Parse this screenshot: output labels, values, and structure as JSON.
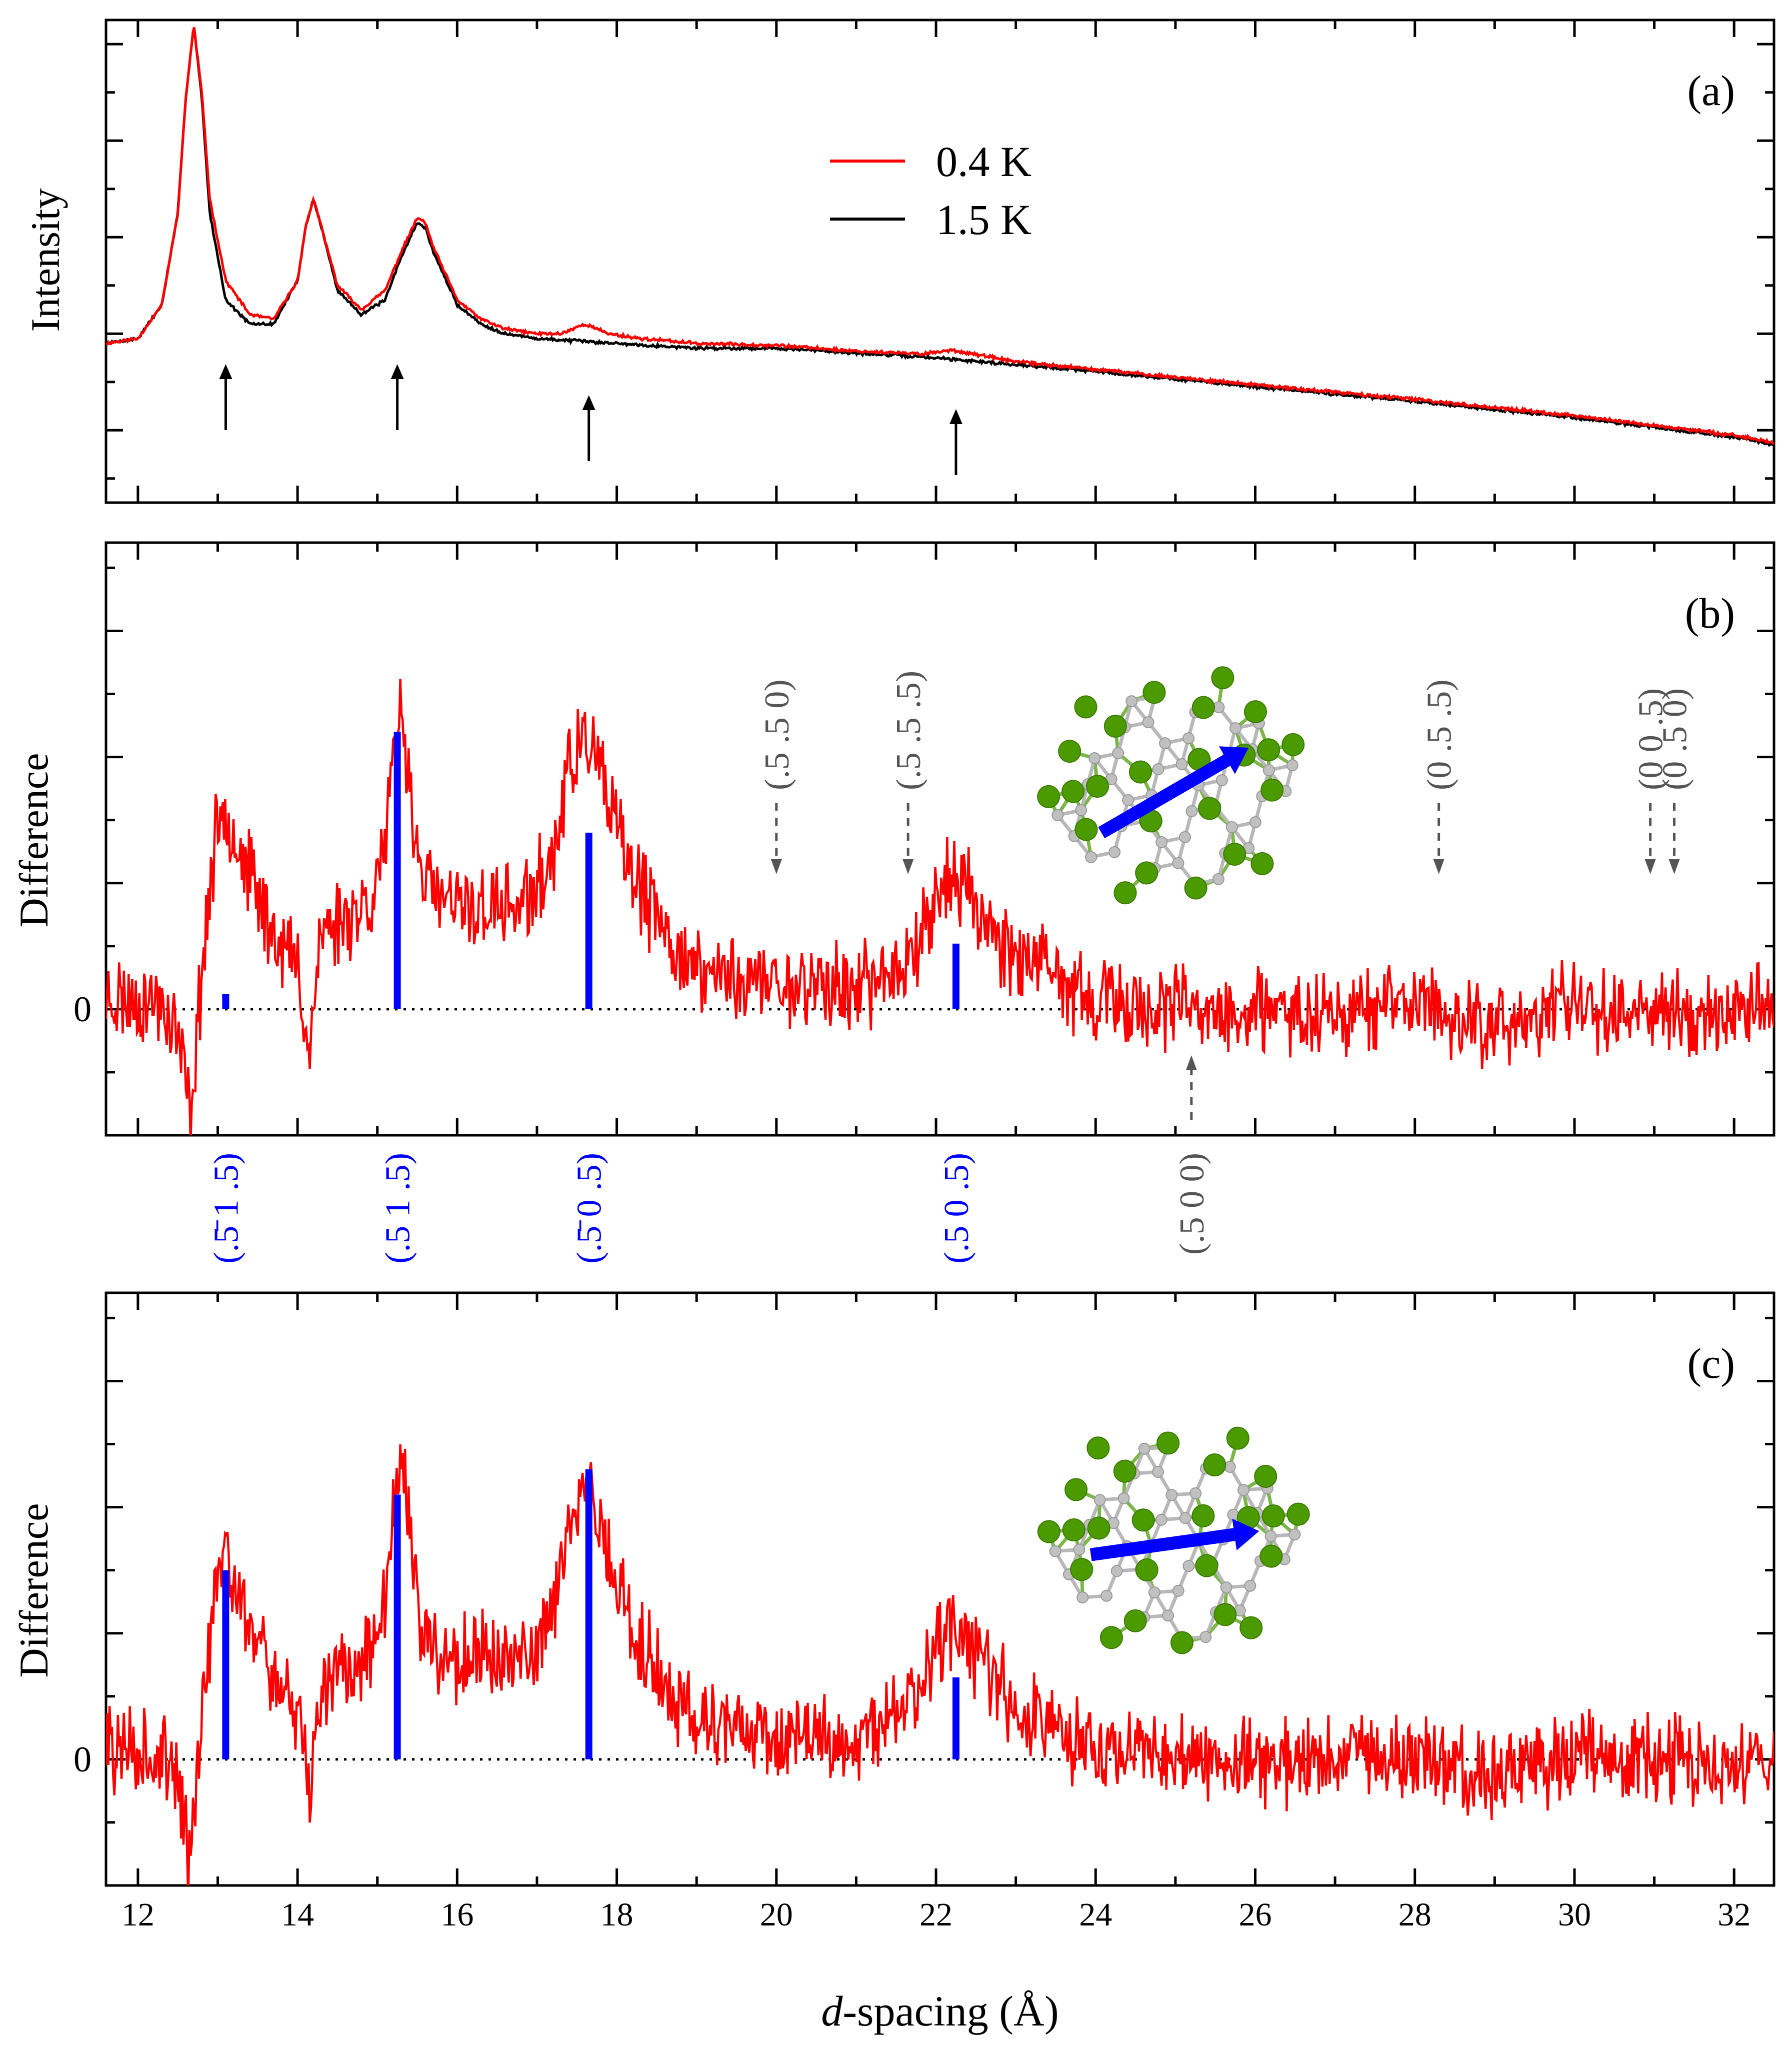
{
  "figure": {
    "xlabel_italic": "d",
    "xlabel_rest": "-spacing (Å)",
    "x_ticks": [
      "12",
      "14",
      "16",
      "18",
      "20",
      "22",
      "24",
      "26",
      "28",
      "30",
      "32"
    ],
    "x_tick_values": [
      12,
      14,
      16,
      18,
      20,
      22,
      24,
      26,
      28,
      30,
      32
    ],
    "zero_label": "0"
  },
  "colors": {
    "diff_red": "#ff0000",
    "black": "#000000",
    "blue_bar": "#0000ff",
    "gray_label": "#555555",
    "atom_green": "#4a9a00",
    "atom_gray": "#c0c0c0"
  },
  "chart_data": [
    {
      "panel": "(a)",
      "type": "line",
      "ylabel": "Intensity",
      "xlim": [
        11.6,
        32.5
      ],
      "ylim": [
        0,
        5.0
      ],
      "legend": [
        "0.4 K",
        "1.5 K"
      ],
      "legend_placement": "top-center",
      "series": [
        {
          "name": "1.5 K",
          "color": "#000000",
          "x": [
            11.6,
            12.0,
            12.3,
            12.5,
            12.6,
            12.7,
            12.8,
            12.9,
            13.1,
            13.4,
            13.7,
            14.0,
            14.1,
            14.2,
            14.3,
            14.5,
            14.8,
            15.1,
            15.3,
            15.5,
            15.6,
            15.7,
            16.0,
            16.3,
            16.6,
            17.0,
            18.0,
            19.0,
            20.0,
            21.0,
            22.0,
            23.0,
            24.0,
            26.0,
            28.0,
            30.0,
            32.0,
            32.5
          ],
          "y": [
            1.65,
            1.7,
            2.05,
            3.0,
            4.2,
            4.95,
            4.2,
            3.0,
            2.1,
            1.85,
            1.85,
            2.3,
            2.85,
            3.15,
            2.85,
            2.2,
            1.95,
            2.1,
            2.55,
            2.9,
            2.85,
            2.6,
            2.05,
            1.85,
            1.75,
            1.7,
            1.65,
            1.6,
            1.6,
            1.55,
            1.5,
            1.43,
            1.36,
            1.2,
            1.05,
            0.88,
            0.68,
            0.6
          ]
        },
        {
          "name": "0.4 K",
          "color": "#ff0000",
          "x": [
            11.6,
            12.0,
            12.3,
            12.5,
            12.6,
            12.7,
            12.8,
            12.9,
            13.1,
            13.4,
            13.7,
            14.0,
            14.1,
            14.2,
            14.3,
            14.5,
            14.8,
            15.1,
            15.3,
            15.5,
            15.6,
            15.7,
            16.0,
            16.3,
            16.6,
            17.0,
            17.3,
            17.6,
            17.9,
            18.3,
            19.0,
            20.0,
            21.0,
            21.8,
            22.2,
            22.6,
            23.0,
            24.0,
            26.0,
            28.0,
            30.0,
            32.0,
            32.5
          ],
          "y": [
            1.65,
            1.7,
            2.05,
            3.0,
            4.2,
            4.95,
            4.25,
            3.15,
            2.3,
            1.95,
            1.9,
            2.3,
            2.85,
            3.15,
            2.85,
            2.25,
            2.0,
            2.2,
            2.6,
            2.95,
            2.9,
            2.65,
            2.1,
            1.9,
            1.8,
            1.75,
            1.75,
            1.85,
            1.75,
            1.7,
            1.65,
            1.63,
            1.57,
            1.54,
            1.58,
            1.52,
            1.46,
            1.38,
            1.22,
            1.07,
            0.9,
            0.7,
            0.62
          ]
        }
      ],
      "arrows_up_at": [
        13.1,
        15.25,
        17.65,
        22.25
      ]
    },
    {
      "panel": "(b)",
      "type": "line",
      "ylabel": "Difference",
      "xlim": [
        11.6,
        32.5
      ],
      "ylim": [
        -1.0,
        3.7
      ],
      "series": [
        {
          "name": "difference",
          "color": "#ff0000",
          "x": [
            11.6,
            12.3,
            12.5,
            12.6,
            12.65,
            12.7,
            12.8,
            12.9,
            13.0,
            13.1,
            13.2,
            13.4,
            13.7,
            14.0,
            14.1,
            14.15,
            14.2,
            14.3,
            14.6,
            14.9,
            15.1,
            15.2,
            15.3,
            15.4,
            15.5,
            15.7,
            16.0,
            16.5,
            16.9,
            17.2,
            17.4,
            17.6,
            17.7,
            17.9,
            18.2,
            18.6,
            19.0,
            19.5,
            20.0,
            20.5,
            21.0,
            21.5,
            21.8,
            22.0,
            22.2,
            22.3,
            22.5,
            22.8,
            23.2,
            23.6,
            24.0,
            25.0,
            26.0,
            27.0,
            28.0,
            29.0,
            30.0,
            31.0,
            32.0,
            32.5
          ],
          "y": [
            0.1,
            0.05,
            -0.2,
            -0.6,
            -0.85,
            -0.5,
            0.3,
            0.95,
            1.45,
            1.65,
            1.4,
            1.05,
            0.6,
            0.35,
            -0.1,
            -0.4,
            0.1,
            0.6,
            0.75,
            0.85,
            1.3,
            1.9,
            2.35,
            1.9,
            1.2,
            0.9,
            0.8,
            0.8,
            0.85,
            1.2,
            1.9,
            2.15,
            2.05,
            1.6,
            1.05,
            0.6,
            0.3,
            0.25,
            0.2,
            0.2,
            0.15,
            0.3,
            0.6,
            0.9,
            1.05,
            1.0,
            0.85,
            0.55,
            0.35,
            0.2,
            0.05,
            0.0,
            -0.05,
            0.0,
            0.05,
            -0.15,
            0.05,
            0.0,
            -0.05,
            0.1
          ],
          "noise_amplitude": 0.55
        },
        {
          "name": "calculated",
          "type": "bar",
          "color": "#0000ff",
          "x": [
            13.1,
            15.25,
            17.65,
            22.25
          ],
          "y": [
            0.12,
            2.2,
            1.4,
            0.52
          ]
        }
      ],
      "reflections_calc": [
        "(.5̄ 1 .5)",
        "(.5 1 .5)",
        "(.5̄ 0 .5)",
        "(.5 0 .5)"
      ],
      "absent_reflections": [
        {
          "label": "(.5 .5 0)",
          "x": 20.0,
          "side": "above"
        },
        {
          "label": "(.5 .5 .5)",
          "x": 21.65,
          "side": "above"
        },
        {
          "label": "(0 .5 .5)",
          "x": 28.3,
          "side": "above"
        },
        {
          "label": "(0 0 .5)",
          "x": 30.95,
          "side": "above"
        },
        {
          "label": "(0 .5 0)",
          "x": 31.25,
          "side": "above"
        },
        {
          "label": "(.5 0 0)",
          "x": 25.2,
          "side": "below"
        }
      ]
    },
    {
      "panel": "(c)",
      "type": "line",
      "ylabel": "Difference",
      "xlim": [
        11.6,
        32.5
      ],
      "ylim": [
        -1.0,
        3.7
      ],
      "series": [
        {
          "name": "difference",
          "color": "#ff0000",
          "x": [
            11.6,
            12.3,
            12.5,
            12.6,
            12.65,
            12.7,
            12.8,
            12.9,
            13.0,
            13.1,
            13.2,
            13.4,
            13.7,
            14.0,
            14.1,
            14.15,
            14.2,
            14.3,
            14.6,
            14.9,
            15.1,
            15.2,
            15.3,
            15.4,
            15.5,
            15.7,
            16.0,
            16.5,
            16.9,
            17.2,
            17.4,
            17.6,
            17.7,
            17.9,
            18.2,
            18.6,
            19.0,
            19.5,
            20.0,
            20.5,
            21.0,
            21.5,
            21.8,
            22.0,
            22.2,
            22.3,
            22.5,
            22.8,
            23.2,
            23.6,
            24.0,
            25.0,
            26.0,
            27.0,
            28.0,
            29.0,
            30.0,
            31.0,
            32.0,
            32.5
          ],
          "y": [
            0.1,
            0.05,
            -0.2,
            -0.6,
            -0.85,
            -0.5,
            0.3,
            0.95,
            1.45,
            1.65,
            1.4,
            1.05,
            0.6,
            0.35,
            -0.1,
            -0.4,
            0.1,
            0.6,
            0.75,
            0.85,
            1.3,
            1.9,
            2.35,
            1.9,
            1.2,
            0.9,
            0.8,
            0.8,
            0.85,
            1.2,
            1.9,
            2.15,
            2.05,
            1.6,
            1.05,
            0.6,
            0.3,
            0.25,
            0.2,
            0.2,
            0.15,
            0.3,
            0.6,
            0.9,
            1.05,
            1.0,
            0.85,
            0.55,
            0.35,
            0.2,
            0.05,
            0.0,
            -0.05,
            0.0,
            0.05,
            -0.15,
            0.05,
            0.0,
            -0.05,
            0.1
          ],
          "noise_amplitude": 0.55
        },
        {
          "name": "calculated",
          "type": "bar",
          "color": "#0000ff",
          "x": [
            13.1,
            15.25,
            17.65,
            22.25
          ],
          "y": [
            1.5,
            2.1,
            2.3,
            0.65
          ]
        }
      ]
    }
  ]
}
